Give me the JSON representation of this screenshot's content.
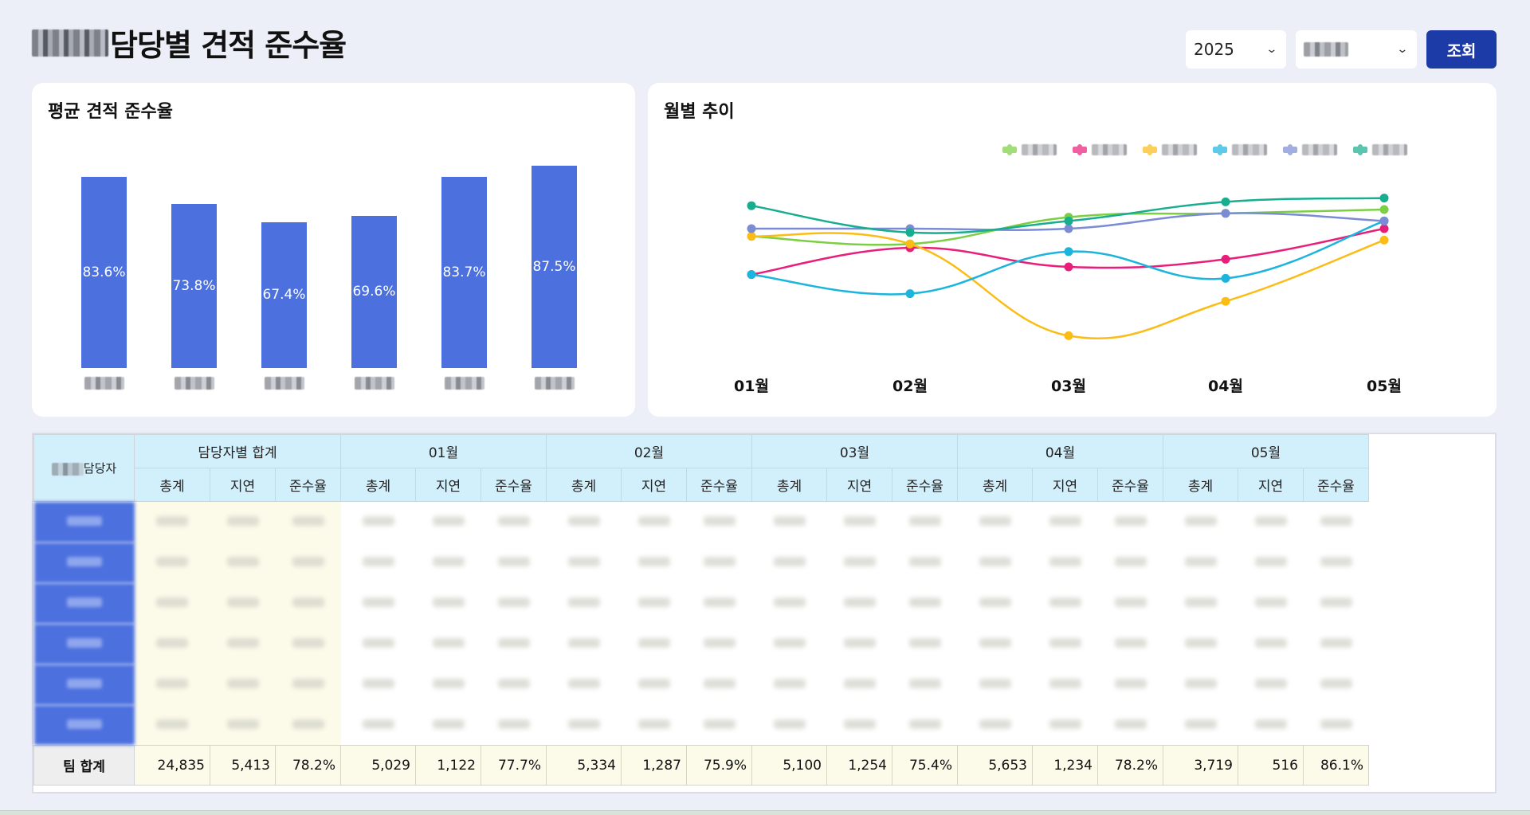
{
  "page": {
    "title_redacted_prefix": "DSM",
    "title": "담당별 견적 준수율"
  },
  "controls": {
    "year_select": "2025",
    "team_select": "",
    "search_button": "조회"
  },
  "bar_card": {
    "title": "평균 견적 준수율"
  },
  "line_card": {
    "title": "월별 추이",
    "months": [
      "01월",
      "02월",
      "03월",
      "04월",
      "05월"
    ]
  },
  "chart_data": [
    {
      "type": "bar",
      "title": "평균 견적 준수율",
      "categories": [
        "담당자1",
        "담당자2",
        "담당자3",
        "담당자4",
        "담당자5",
        "담당자6"
      ],
      "values": [
        83.6,
        73.8,
        67.4,
        69.6,
        83.7,
        87.5
      ],
      "value_labels": [
        "83.6%",
        "73.8%",
        "67.4%",
        "69.6%",
        "83.7%",
        "87.5%"
      ],
      "color": "#4c70de",
      "xlabel": "",
      "ylabel": "",
      "grid": false
    },
    {
      "type": "line",
      "title": "월별 추이",
      "categories": [
        "01월",
        "02월",
        "03월",
        "04월",
        "05월"
      ],
      "legend_position": "top-right",
      "grid": false,
      "series": [
        {
          "name": "담당자1",
          "color": "#7ccf42",
          "values": [
            83,
            81,
            88,
            89,
            90
          ]
        },
        {
          "name": "담당자2",
          "color": "#e91e7a",
          "values": [
            73,
            80,
            75,
            77,
            85
          ]
        },
        {
          "name": "담당자3",
          "color": "#fbbc15",
          "values": [
            83,
            81,
            57,
            66,
            82
          ]
        },
        {
          "name": "담당자4",
          "color": "#1bb4dd",
          "values": [
            73,
            68,
            79,
            72,
            87
          ]
        },
        {
          "name": "담당자5",
          "color": "#7b8cd4",
          "values": [
            85,
            85,
            85,
            89,
            87
          ]
        },
        {
          "name": "담당자6",
          "color": "#17ad8f",
          "values": [
            91,
            84,
            87,
            92,
            93
          ]
        }
      ]
    }
  ],
  "table": {
    "name_header": "담당자",
    "group_headers": [
      "담당자별 합계",
      "01월",
      "02월",
      "03월",
      "04월",
      "05월"
    ],
    "sub_headers": [
      "총계",
      "지연",
      "준수율"
    ],
    "row_count_redacted": 6,
    "total_row": {
      "label": "팀 합계",
      "values": [
        "24,835",
        "5,413",
        "78.2%",
        "5,029",
        "1,122",
        "77.7%",
        "5,334",
        "1,287",
        "75.9%",
        "5,100",
        "1,254",
        "75.4%",
        "5,653",
        "1,234",
        "78.2%",
        "3,719",
        "516",
        "86.1%"
      ]
    }
  }
}
